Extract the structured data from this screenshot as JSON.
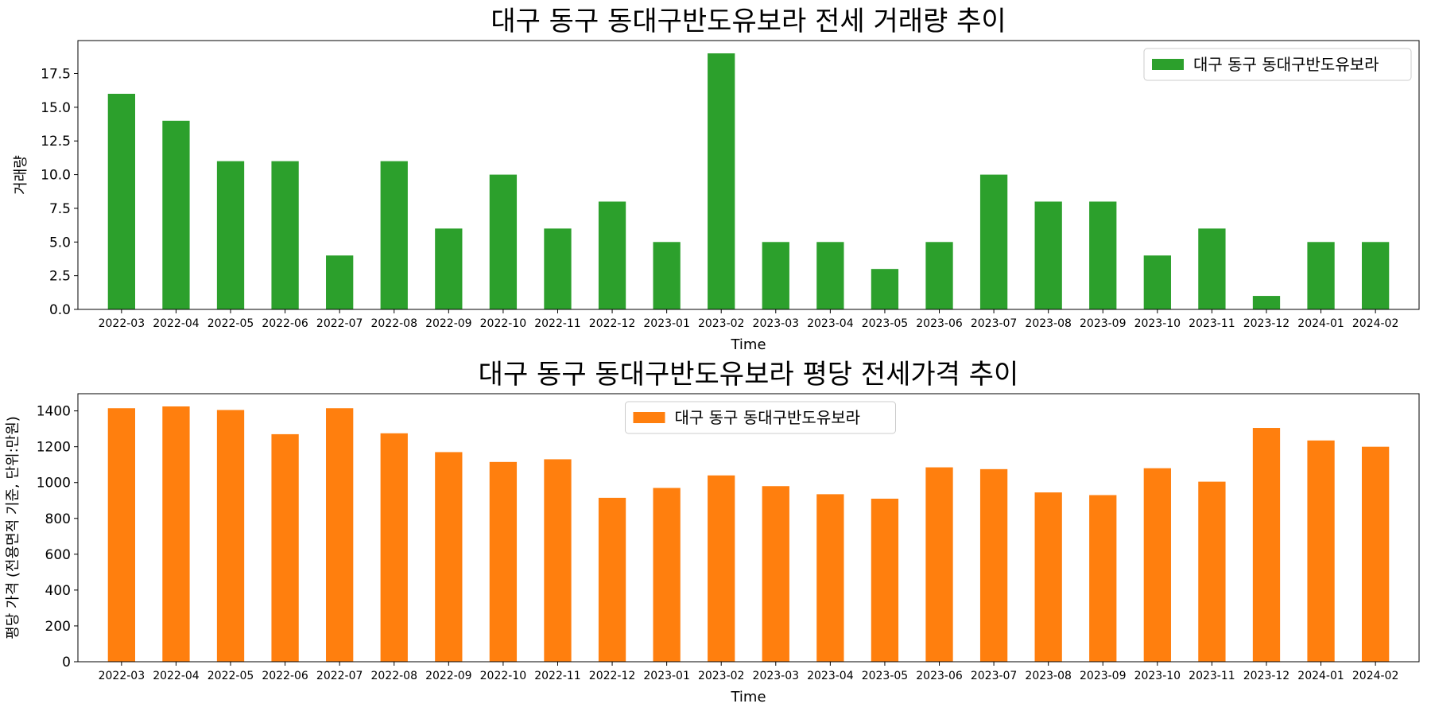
{
  "chart_data": [
    {
      "type": "bar",
      "title": "대구 동구 동대구반도유보라 전세 거래량 추이",
      "xlabel": "Time",
      "ylabel": "거래량",
      "categories": [
        "2022-03",
        "2022-04",
        "2022-05",
        "2022-06",
        "2022-07",
        "2022-08",
        "2022-09",
        "2022-10",
        "2022-11",
        "2022-12",
        "2023-01",
        "2023-02",
        "2023-03",
        "2023-04",
        "2023-05",
        "2023-06",
        "2023-07",
        "2023-08",
        "2023-09",
        "2023-10",
        "2023-11",
        "2023-12",
        "2024-01",
        "2024-02"
      ],
      "series": [
        {
          "name": "대구 동구 동대구반도유보라",
          "color": "#2ca02c",
          "values": [
            16,
            14,
            11,
            11,
            4,
            11,
            6,
            10,
            6,
            8,
            5,
            19,
            5,
            5,
            3,
            5,
            10,
            8,
            8,
            4,
            6,
            1,
            5,
            5
          ]
        }
      ],
      "ylim": [
        0,
        19.95
      ],
      "yticks": [
        0.0,
        2.5,
        5.0,
        7.5,
        10.0,
        12.5,
        15.0,
        17.5
      ],
      "ytick_labels": [
        "0.0",
        "2.5",
        "5.0",
        "7.5",
        "10.0",
        "12.5",
        "15.0",
        "17.5"
      ],
      "grid": false,
      "legend_position": "upper right"
    },
    {
      "type": "bar",
      "title": "대구 동구 동대구반도유보라 평당 전세가격 추이",
      "xlabel": "Time",
      "ylabel": "평당 가격 (전용면적 기준, 단위:만원)",
      "categories": [
        "2022-03",
        "2022-04",
        "2022-05",
        "2022-06",
        "2022-07",
        "2022-08",
        "2022-09",
        "2022-10",
        "2022-11",
        "2022-12",
        "2023-01",
        "2023-02",
        "2023-03",
        "2023-04",
        "2023-05",
        "2023-06",
        "2023-07",
        "2023-08",
        "2023-09",
        "2023-10",
        "2023-11",
        "2023-12",
        "2024-01",
        "2024-02"
      ],
      "series": [
        {
          "name": "대구 동구 동대구반도유보라",
          "color": "#ff7f0e",
          "values": [
            1415,
            1425,
            1405,
            1270,
            1415,
            1275,
            1170,
            1115,
            1130,
            915,
            970,
            1040,
            980,
            935,
            910,
            1085,
            1075,
            945,
            930,
            1080,
            1005,
            1305,
            1235,
            1200
          ]
        }
      ],
      "ylim": [
        0,
        1496
      ],
      "yticks": [
        0,
        200,
        400,
        600,
        800,
        1000,
        1200,
        1400
      ],
      "ytick_labels": [
        "0",
        "200",
        "400",
        "600",
        "800",
        "1000",
        "1200",
        "1400"
      ],
      "grid": false,
      "legend_position": "upper center"
    }
  ]
}
